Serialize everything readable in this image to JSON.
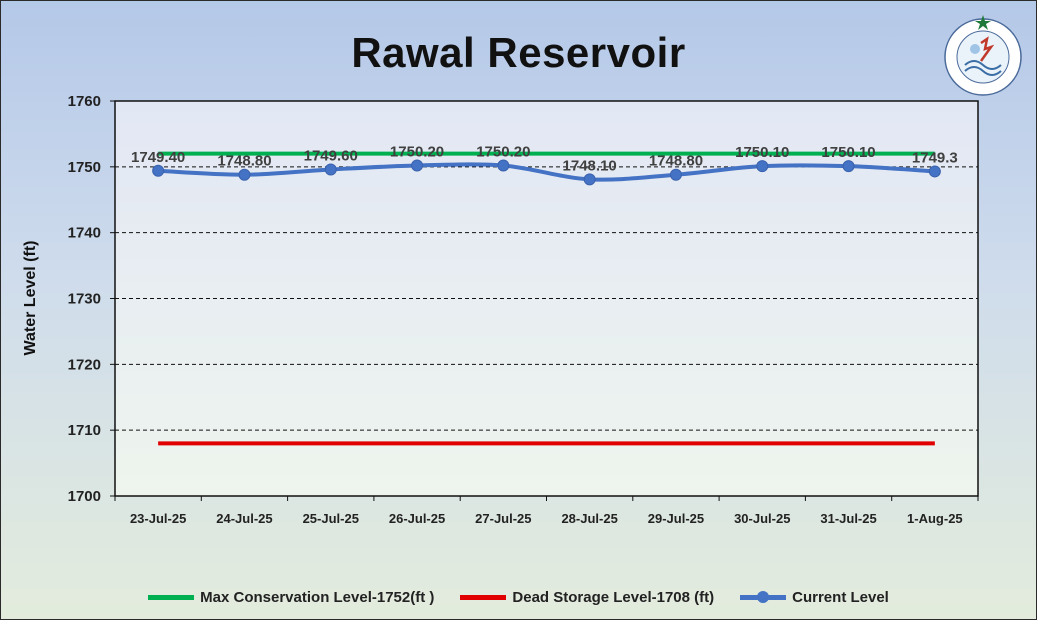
{
  "chart_data": {
    "type": "line",
    "title": "Rawal Reservoir",
    "ylabel": "Water Level (ft)",
    "xlabel": "",
    "ylim": [
      1700,
      1760
    ],
    "yticks": [
      1700,
      1710,
      1720,
      1730,
      1740,
      1750,
      1760
    ],
    "grid": "horizontal dashed",
    "legend_position": "bottom",
    "categories": [
      "23-Jul-25",
      "24-Jul-25",
      "25-Jul-25",
      "26-Jul-25",
      "27-Jul-25",
      "28-Jul-25",
      "29-Jul-25",
      "30-Jul-25",
      "31-Jul-25",
      "1-Aug-25"
    ],
    "series": [
      {
        "name": "Max Conservation Level-1752(ft )",
        "color": "#00b050",
        "values": [
          1752,
          1752,
          1752,
          1752,
          1752,
          1752,
          1752,
          1752,
          1752,
          1752
        ]
      },
      {
        "name": "Dead Storage Level-1708 (ft)",
        "color": "#e00000",
        "values": [
          1708,
          1708,
          1708,
          1708,
          1708,
          1708,
          1708,
          1708,
          1708,
          1708
        ]
      },
      {
        "name": "Current Level",
        "color": "#4472c4",
        "values": [
          1749.4,
          1748.8,
          1749.6,
          1750.2,
          1750.2,
          1748.1,
          1748.8,
          1750.1,
          1750.1,
          1749.3
        ],
        "data_labels": [
          "1749.40",
          "1748.80",
          "1749.60",
          "1750.20",
          "1750.20",
          "1748.10",
          "1748.80",
          "1750.10",
          "1750.10",
          "1749.3"
        ]
      }
    ]
  },
  "logo": {
    "name": "pmd-logo-icon",
    "text": "PAKISTAN METEOROLOGICAL DEPARTMENT"
  }
}
